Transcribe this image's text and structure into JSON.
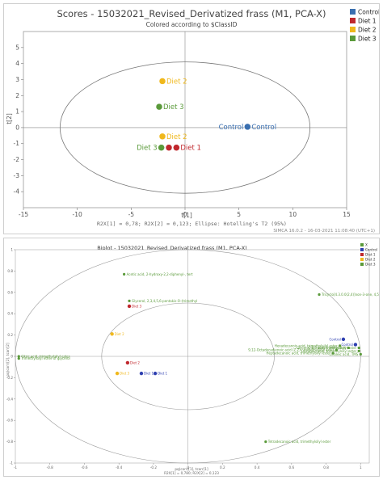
{
  "chart_data": [
    {
      "type": "scatter",
      "title": "Scores - 15032021_Revised_Derivatized frass (M1, PCA-X)",
      "subtitle": "Colored according to $ClassID",
      "xlabel": "t[1]",
      "ylabel": "t[2]",
      "xlim": [
        -15,
        15
      ],
      "ylim": [
        -5,
        6
      ],
      "xticks": [
        "-15",
        "-10",
        "-5",
        "0",
        "5",
        "10",
        "15"
      ],
      "yticks": [
        "-4",
        "-3",
        "-2",
        "-1",
        "0",
        "1",
        "2",
        "3",
        "4",
        "5"
      ],
      "ellipse": {
        "rx": 11.6,
        "ry": 4.1
      },
      "footer": "R2X[1] = 0,78; R2X[2] = 0,123; Ellipse: Hotelling's T2 (95%)",
      "signature": "SIMCA 16.0.2 - 16-03-2021 11:08:40 (UTC+1)",
      "legend": [
        {
          "name": "Control",
          "color": "#3a6fb0"
        },
        {
          "name": "Diet 1",
          "color": "#c0282d"
        },
        {
          "name": "Diet 2",
          "color": "#f0b81c"
        },
        {
          "name": "Diet 3",
          "color": "#5a9a3a"
        }
      ],
      "points": [
        {
          "label": "Diet 2",
          "x": -2.1,
          "y": 2.9,
          "color": "#f0b81c",
          "pos": "right"
        },
        {
          "label": "Diet 3",
          "x": -2.4,
          "y": 1.3,
          "color": "#5a9a3a",
          "pos": "right"
        },
        {
          "label": "Control",
          "x": 5.8,
          "y": 0.05,
          "color": "#3a6fb0",
          "pos": "both"
        },
        {
          "label": "Diet 2",
          "x": -2.1,
          "y": -0.55,
          "color": "#f0b81c",
          "pos": "right"
        },
        {
          "label": "Diet 3",
          "x": -2.2,
          "y": -1.25,
          "color": "#5a9a3a",
          "pos": "left"
        },
        {
          "label": "Diet 1",
          "x": -1.5,
          "y": -1.25,
          "color": "#c0282d",
          "pos": "none"
        },
        {
          "label": "Diet 1",
          "x": -0.8,
          "y": -1.25,
          "color": "#c0282d",
          "pos": "right"
        }
      ]
    },
    {
      "type": "scatter",
      "title": "Biplot - 15032021_Revised_Derivatized frass (M1, PCA-X)",
      "subtitle": "Colored according to $ClassID",
      "xlabel": "pq(corr)[1], tcorr[1]",
      "ylabel": "pq(corr)[2], tcorr[2]",
      "xlim": [
        -1,
        1.05
      ],
      "ylim": [
        -1,
        1
      ],
      "xticks": [
        "-1",
        "-0.8",
        "-0.6",
        "-0.4",
        "-0.2",
        "0",
        "0.2",
        "0.4",
        "0.6",
        "0.8",
        "1"
      ],
      "yticks": [
        "-1",
        "-0.8",
        "-0.6",
        "-0.4",
        "-0.2",
        "0",
        "0.2",
        "0.4",
        "0.6",
        "0.8",
        "1"
      ],
      "footer": "R2X[1] = 0,780; R2X[2] = 0,123",
      "legend": [
        {
          "name": "X",
          "color": "#5a9a3a"
        },
        {
          "name": "Control",
          "color": "#2e3fb0"
        },
        {
          "name": "Diet 1",
          "color": "#c0282d"
        },
        {
          "name": "Diet 2",
          "color": "#f0b81c"
        },
        {
          "name": "Diet 3",
          "color": "#5a9a3a"
        }
      ],
      "points": [
        {
          "label": "Acetic acid, 2-hydroxy-2,2-diphenyl-, tert",
          "x": -0.37,
          "y": 0.77,
          "color": "#5a9a3a"
        },
        {
          "label": "Glycerol, 2,3,4,5,6-pentakis-O-(trimethyl",
          "x": -0.34,
          "y": 0.52,
          "color": "#5a9a3a"
        },
        {
          "label": "Diet 3",
          "x": -0.34,
          "y": 0.47,
          "color": "#c0282d"
        },
        {
          "label": "Tricyclo[4.3.0.0(2,4)]non-3-one, 4,5-dimethyl-",
          "x": 0.76,
          "y": 0.58,
          "color": "#5a9a3a"
        },
        {
          "label": "Diet 2",
          "x": -0.44,
          "y": 0.21,
          "color": "#f0b81c"
        },
        {
          "label": "Control",
          "x": 0.9,
          "y": 0.16,
          "color": "#2e3fb0"
        },
        {
          "label": "Control",
          "x": 0.97,
          "y": 0.11,
          "color": "#2e3fb0"
        },
        {
          "label": "Hexadecanoic acid, trimethylsilyl ester",
          "x": 0.88,
          "y": 0.1,
          "color": "#5a9a3a"
        },
        {
          "label": "9,12-Octadecadienoic acid (Z,Z)-, trimethylsilyl ester",
          "x": 0.86,
          "y": 0.06,
          "color": "#5a9a3a"
        },
        {
          "label": "Heptadecanoic acid, trimethylsilyl ester",
          "x": 0.84,
          "y": 0.03,
          "color": "#5a9a3a"
        },
        {
          "label": "Glycerol, 1,3-bis(trimethylsilyl)",
          "x": 0.93,
          "y": 0.08,
          "color": "#5a9a3a"
        },
        {
          "label": "Oleic acid, trimethylsilyl ester",
          "x": 0.99,
          "y": 0.08,
          "color": "#5a9a3a"
        },
        {
          "label": "Decanoic acid, trimethylsilyl ester",
          "x": 0.99,
          "y": 0.05,
          "color": "#5a9a3a"
        },
        {
          "label": "Linoleic acid, TMS",
          "x": 1.0,
          "y": 0.02,
          "color": "#5a9a3a"
        },
        {
          "label": "Citric acid, trimethylsilyl ester",
          "x": -0.98,
          "y": 0.0,
          "color": "#5a9a3a"
        },
        {
          "label": "Trimethylsilyl ether of glycerol",
          "x": -0.98,
          "y": -0.02,
          "color": "#5a9a3a"
        },
        {
          "label": "Diet 2",
          "x": -0.35,
          "y": -0.06,
          "color": "#c0282d"
        },
        {
          "label": "Diet 3",
          "x": -0.41,
          "y": -0.16,
          "color": "#f0b81c"
        },
        {
          "label": "Diet 1",
          "x": -0.27,
          "y": -0.16,
          "color": "#2e3fb0"
        },
        {
          "label": "Diet 1",
          "x": -0.19,
          "y": -0.16,
          "color": "#2e3fb0"
        },
        {
          "label": "Tetradecanoic acid, trimethylsilyl ester",
          "x": 0.45,
          "y": -0.8,
          "color": "#5a9a3a"
        }
      ]
    }
  ]
}
